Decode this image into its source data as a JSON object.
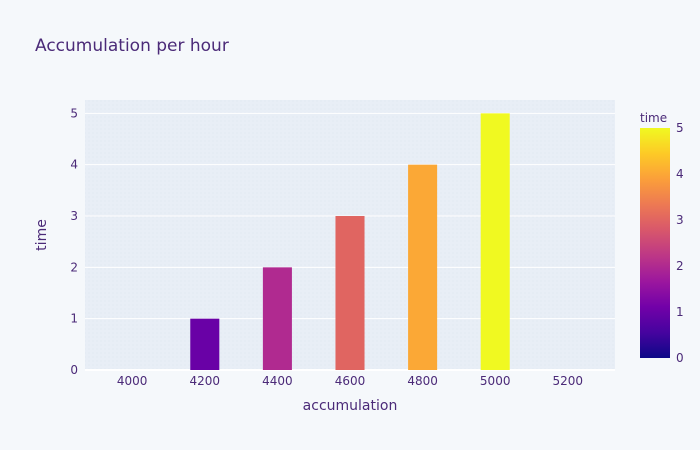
{
  "chart_data": {
    "type": "bar",
    "title": "Accumulation per hour",
    "xlabel": "accumulation",
    "ylabel": "time",
    "x": [
      4000,
      4200,
      4400,
      4600,
      4800,
      5000
    ],
    "values": [
      0,
      1,
      2,
      3,
      4,
      5
    ],
    "xlim": [
      3870,
      5330
    ],
    "ylim": [
      0,
      5.26
    ],
    "x_ticks": [
      "4000",
      "4200",
      "4400",
      "4600",
      "4800",
      "5000",
      "5200"
    ],
    "y_ticks": [
      "0",
      "1",
      "2",
      "3",
      "4",
      "5"
    ],
    "grid": true,
    "colorbar": {
      "title": "time",
      "ticks": [
        "0",
        "1",
        "2",
        "3",
        "4",
        "5"
      ],
      "range": [
        0,
        5
      ],
      "colors": [
        "#0d0887",
        "#46039f",
        "#7201a8",
        "#9c179e",
        "#bd3786",
        "#d8576b",
        "#ed7953",
        "#fb9f3a",
        "#fdca26",
        "#f0f921"
      ]
    }
  }
}
